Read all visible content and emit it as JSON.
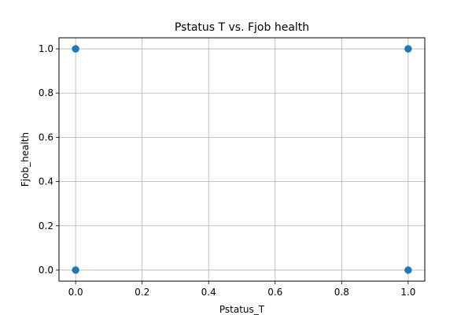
{
  "chart_data": {
    "type": "scatter",
    "title": "Pstatus T vs. Fjob health",
    "xlabel": "Pstatus_T",
    "ylabel": "Fjob_health",
    "xlim": [
      -0.05,
      1.05
    ],
    "ylim": [
      -0.05,
      1.05
    ],
    "xticks": [
      "0.0",
      "0.2",
      "0.4",
      "0.6",
      "0.8",
      "1.0"
    ],
    "yticks": [
      "0.0",
      "0.2",
      "0.4",
      "0.6",
      "0.8",
      "1.0"
    ],
    "grid": true,
    "point_color": "#1f77b4",
    "points": [
      {
        "x": 0,
        "y": 0
      },
      {
        "x": 0,
        "y": 1
      },
      {
        "x": 1,
        "y": 0
      },
      {
        "x": 1,
        "y": 1
      }
    ]
  }
}
